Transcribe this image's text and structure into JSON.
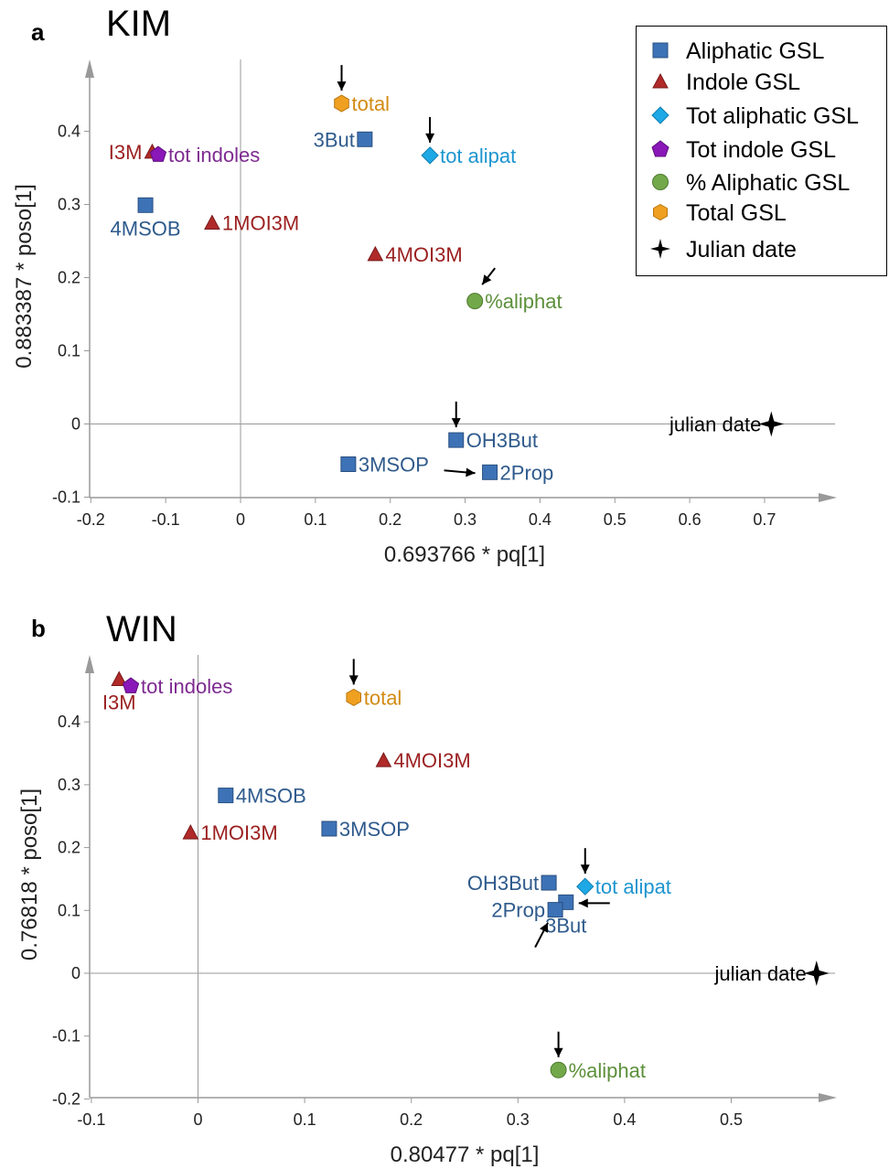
{
  "legend": {
    "items": [
      {
        "label": "Aliphatic GSL",
        "shape": "square",
        "color": "#3d72b6"
      },
      {
        "label": "Indole GSL",
        "shape": "triangle",
        "color": "#b02a2a"
      },
      {
        "label": "Tot aliphatic GSL",
        "shape": "diamond",
        "color": "#1ea8e6"
      },
      {
        "label": "Tot indole GSL",
        "shape": "pentagon",
        "color": "#8a17b8"
      },
      {
        "label": "% Aliphatic GSL",
        "shape": "circle",
        "color": "#73a84a"
      },
      {
        "label": "Total GSL",
        "shape": "hexagon",
        "color": "#f0a020"
      },
      {
        "label": "Julian date",
        "shape": "star",
        "color": "#000000"
      }
    ]
  },
  "colors": {
    "aliphatic_text": "#2e5a8c",
    "indole_text": "#9b1f1f",
    "tot_aliphatic_text": "#1d95cf",
    "tot_indole_text": "#7d2a90",
    "pct_aliphatic_text": "#5c8f3a",
    "total_text": "#d28a12",
    "julian_text": "#000000",
    "axis": "#999999"
  },
  "chart_data": [
    {
      "panel": "a",
      "title": "KIM",
      "type": "scatter",
      "xlabel": "0.693766 * pq[1]",
      "ylabel": "0.883387 * poso[1]",
      "xlim": [
        -0.2,
        0.8
      ],
      "ylim": [
        -0.1,
        0.48
      ],
      "xticks": [
        -0.2,
        -0.1,
        0,
        0.1,
        0.2,
        0.3,
        0.4,
        0.5,
        0.6,
        0.7
      ],
      "xtick_labels": [
        "-0.2",
        "-0.1",
        "0",
        "0.1",
        "0.2",
        "0.3",
        "0.4",
        "0.5",
        "0.6",
        "0.7"
      ],
      "yticks": [
        -0.1,
        0,
        0.1,
        0.2,
        0.3,
        0.4
      ],
      "ytick_labels": [
        "-0.1",
        "0",
        "0.1",
        "0.2",
        "0.3",
        "0.4"
      ],
      "points": [
        {
          "label": "total",
          "group": "Total GSL",
          "x": 0.135,
          "y": 0.438,
          "label_pos": "right",
          "arrow": "down"
        },
        {
          "label": "3But",
          "group": "Aliphatic GSL",
          "x": 0.166,
          "y": 0.389,
          "label_pos": "left"
        },
        {
          "label": "tot alipat",
          "group": "Tot aliphatic GSL",
          "x": 0.253,
          "y": 0.367,
          "label_pos": "right",
          "arrow": "down"
        },
        {
          "label": "I3M",
          "group": "Indole GSL",
          "x": -0.118,
          "y": 0.372,
          "label_pos": "left"
        },
        {
          "label": "tot indoles",
          "group": "Tot indole GSL",
          "x": -0.11,
          "y": 0.368,
          "label_pos": "right"
        },
        {
          "label": "4MSOB",
          "group": "Aliphatic GSL",
          "x": -0.127,
          "y": 0.299,
          "label_pos": "below"
        },
        {
          "label": "1MOI3M",
          "group": "Indole GSL",
          "x": -0.038,
          "y": 0.275,
          "label_pos": "right"
        },
        {
          "label": "4MOI3M",
          "group": "Indole GSL",
          "x": 0.18,
          "y": 0.232,
          "label_pos": "right"
        },
        {
          "label": "%aliphat",
          "group": "% Aliphatic GSL",
          "x": 0.313,
          "y": 0.168,
          "label_pos": "right",
          "arrow": "diag-down-left"
        },
        {
          "label": "OH3But",
          "group": "Aliphatic GSL",
          "x": 0.288,
          "y": -0.022,
          "label_pos": "right",
          "arrow": "down"
        },
        {
          "label": "3MSOP",
          "group": "Aliphatic GSL",
          "x": 0.144,
          "y": -0.055,
          "label_pos": "right"
        },
        {
          "label": "2Prop",
          "group": "Aliphatic GSL",
          "x": 0.333,
          "y": -0.066,
          "label_pos": "right",
          "arrow": "right"
        },
        {
          "label": "julian date",
          "group": "Julian date",
          "x": 0.709,
          "y": 0.0,
          "label_pos": "left"
        }
      ]
    },
    {
      "panel": "b",
      "title": "WIN",
      "type": "scatter",
      "xlabel": "0.80477 * pq[1]",
      "ylabel": "0.76818 * poso[1]",
      "xlim": [
        -0.1,
        0.6
      ],
      "ylim": [
        -0.2,
        0.5
      ],
      "xticks": [
        -0.1,
        0,
        0.1,
        0.2,
        0.3,
        0.4,
        0.5
      ],
      "xtick_labels": [
        "-0.1",
        "0",
        "0.1",
        "0.2",
        "0.3",
        "0.4",
        "0.5"
      ],
      "yticks": [
        -0.2,
        -0.1,
        0,
        0.1,
        0.2,
        0.3,
        0.4
      ],
      "ytick_labels": [
        "-0.2",
        "-0.1",
        "0",
        "0.1",
        "0.2",
        "0.3",
        "0.4"
      ],
      "points": [
        {
          "label": "I3M",
          "group": "Indole GSL",
          "x": -0.074,
          "y": 0.468,
          "label_pos": "below"
        },
        {
          "label": "tot indoles",
          "group": "Tot indole GSL",
          "x": -0.063,
          "y": 0.457,
          "label_pos": "right"
        },
        {
          "label": "total",
          "group": "Total GSL",
          "x": 0.146,
          "y": 0.439,
          "label_pos": "right",
          "arrow": "down"
        },
        {
          "label": "4MOI3M",
          "group": "Indole GSL",
          "x": 0.174,
          "y": 0.339,
          "label_pos": "right"
        },
        {
          "label": "4MSOB",
          "group": "Aliphatic GSL",
          "x": 0.026,
          "y": 0.283,
          "label_pos": "right"
        },
        {
          "label": "3MSOP",
          "group": "Aliphatic GSL",
          "x": 0.123,
          "y": 0.23,
          "label_pos": "right"
        },
        {
          "label": "1MOI3M",
          "group": "Indole GSL",
          "x": -0.007,
          "y": 0.224,
          "label_pos": "right"
        },
        {
          "label": "OH3But",
          "group": "Aliphatic GSL",
          "x": 0.329,
          "y": 0.144,
          "label_pos": "left"
        },
        {
          "label": "tot alipat",
          "group": "Tot aliphatic GSL",
          "x": 0.363,
          "y": 0.138,
          "label_pos": "right",
          "arrow": "down"
        },
        {
          "label": "3But",
          "group": "Aliphatic GSL",
          "x": 0.345,
          "y": 0.113,
          "label_pos": "below",
          "arrow": "left"
        },
        {
          "label": "2Prop",
          "group": "Aliphatic GSL",
          "x": 0.335,
          "y": 0.101,
          "label_pos": "left",
          "arrow": "diag-up-right"
        },
        {
          "label": "julian date",
          "group": "Julian date",
          "x": 0.58,
          "y": 0.0,
          "label_pos": "left"
        },
        {
          "label": "%aliphat",
          "group": "% Aliphatic GSL",
          "x": 0.338,
          "y": -0.154,
          "label_pos": "right",
          "arrow": "down"
        }
      ]
    }
  ]
}
